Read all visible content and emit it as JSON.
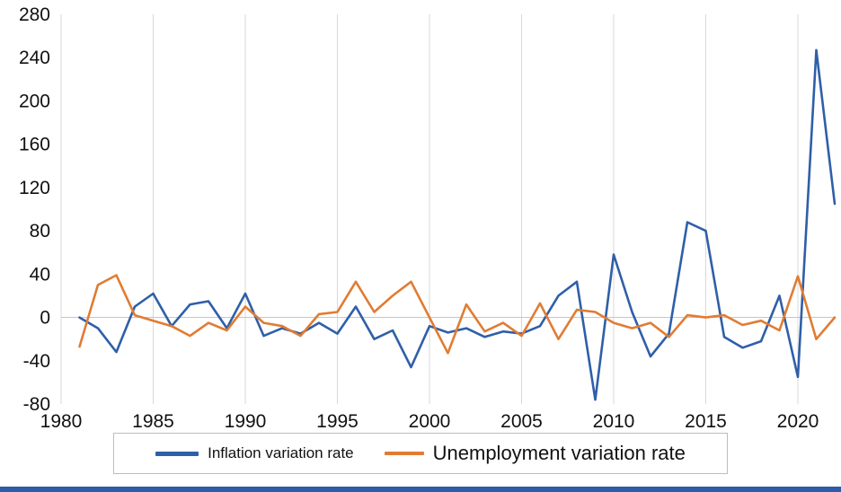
{
  "page": {
    "accent_bar_color": "#2d5ca8",
    "background": "#ffffff"
  },
  "legend": {
    "inflation_label": "Inflation variation rate",
    "unemployment_label": "Unemployment variation rate"
  },
  "chart_data": {
    "type": "line",
    "title": "",
    "xlabel": "",
    "ylabel": "",
    "x": [
      1981,
      1982,
      1983,
      1984,
      1985,
      1986,
      1987,
      1988,
      1989,
      1990,
      1991,
      1992,
      1993,
      1994,
      1995,
      1996,
      1997,
      1998,
      1999,
      2000,
      2001,
      2002,
      2003,
      2004,
      2005,
      2006,
      2007,
      2008,
      2009,
      2010,
      2011,
      2012,
      2013,
      2014,
      2015,
      2016,
      2017,
      2018,
      2019,
      2020,
      2021,
      2022
    ],
    "series": [
      {
        "name": "Inflation variation rate",
        "color": "#2f5fa8",
        "values": [
          0,
          -10,
          -32,
          10,
          22,
          -8,
          12,
          15,
          -10,
          22,
          -17,
          -10,
          -15,
          -5,
          -15,
          10,
          -20,
          -12,
          -46,
          -8,
          -14,
          -10,
          -18,
          -13,
          -15,
          -8,
          20,
          33,
          -76,
          58,
          5,
          -36,
          -15,
          88,
          80,
          -18,
          -28,
          -22,
          20,
          -55,
          247,
          105
        ]
      },
      {
        "name": "Unemployment variation rate",
        "color": "#e07c33",
        "values": [
          -27,
          30,
          39,
          2,
          -3,
          -8,
          -17,
          -5,
          -12,
          10,
          -5,
          -8,
          -17,
          3,
          5,
          33,
          5,
          20,
          33,
          0,
          -33,
          12,
          -13,
          -5,
          -17,
          13,
          -20,
          7,
          5,
          -5,
          -10,
          -5,
          -18,
          2,
          0,
          2,
          -7,
          -3,
          -12,
          38,
          -20,
          0
        ]
      }
    ],
    "xlim": [
      1980,
      2022
    ],
    "ylim": [
      -80,
      280
    ],
    "xticks": [
      1980,
      1985,
      1990,
      1995,
      2000,
      2005,
      2010,
      2015,
      2020
    ],
    "yticks": [
      280,
      240,
      200,
      160,
      120,
      80,
      40,
      0,
      -40,
      -80
    ],
    "grid": "vertical-major-plus-zero-line",
    "grid_color": "#d9d9d9",
    "legend_position": "bottom"
  }
}
